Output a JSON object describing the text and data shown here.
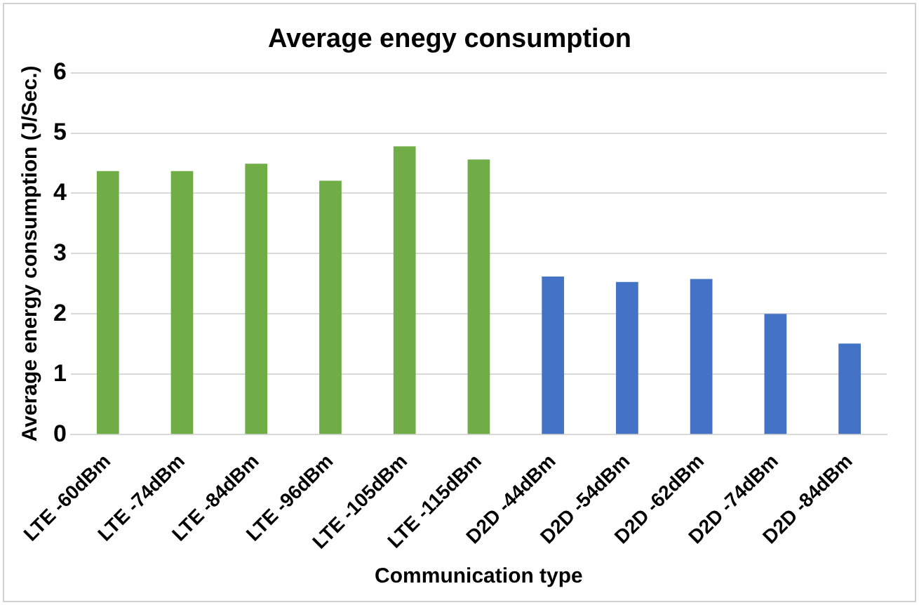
{
  "chart_data": {
    "type": "bar",
    "title": "Average enegy consumption",
    "xlabel": "Communication type",
    "ylabel": "Average energy consumption (J/Sec.)",
    "categories": [
      "LTE -60dBm",
      "LTE -74dBm",
      "LTE -84dBm",
      "LTE -96dBm",
      "LTE -105dBm",
      "LTE -115dBm",
      "D2D -44dBm",
      "D2D -54dBm",
      "D2D -62dBm",
      "D2D -74dBm",
      "D2D -84dBm"
    ],
    "values": [
      4.37,
      4.37,
      4.49,
      4.21,
      4.78,
      4.56,
      2.62,
      2.53,
      2.58,
      2.0,
      1.51
    ],
    "colors": [
      "#70ad47",
      "#70ad47",
      "#70ad47",
      "#70ad47",
      "#70ad47",
      "#70ad47",
      "#4472c4",
      "#4472c4",
      "#4472c4",
      "#4472c4",
      "#4472c4"
    ],
    "ylim": [
      0,
      6
    ],
    "yticks": [
      0,
      1,
      2,
      3,
      4,
      5,
      6
    ],
    "grid": "y",
    "legend": false
  }
}
